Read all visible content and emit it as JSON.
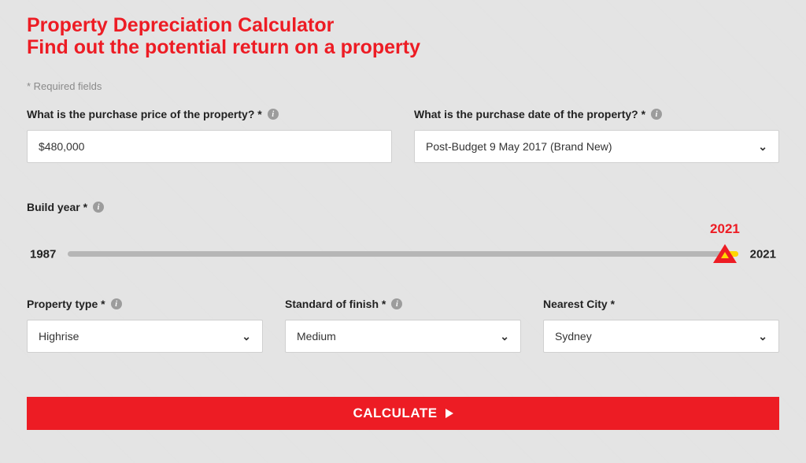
{
  "heading": {
    "line1": "Property Depreciation Calculator",
    "line2": "Find out the potential return on a property"
  },
  "requiredNote": "* Required fields",
  "purchasePrice": {
    "label": "What is the purchase price of the property? *",
    "value": "$480,000"
  },
  "purchaseDate": {
    "label": "What is the purchase date of the property? *",
    "selected": "Post-Budget 9 May 2017 (Brand New)"
  },
  "buildYear": {
    "label": "Build year *",
    "min": "1987",
    "max": "2021",
    "value": "2021",
    "percent": 98
  },
  "propertyType": {
    "label": "Property type *",
    "selected": "Highrise"
  },
  "standardOfFinish": {
    "label": "Standard of finish *",
    "selected": "Medium"
  },
  "nearestCity": {
    "label": "Nearest City *",
    "selected": "Sydney"
  },
  "calculateLabel": "CALCULATE",
  "colors": {
    "accent": "#ed1c24",
    "highlight": "#ffd600",
    "track": "#b6b6b6",
    "background": "#e5e5e5"
  }
}
